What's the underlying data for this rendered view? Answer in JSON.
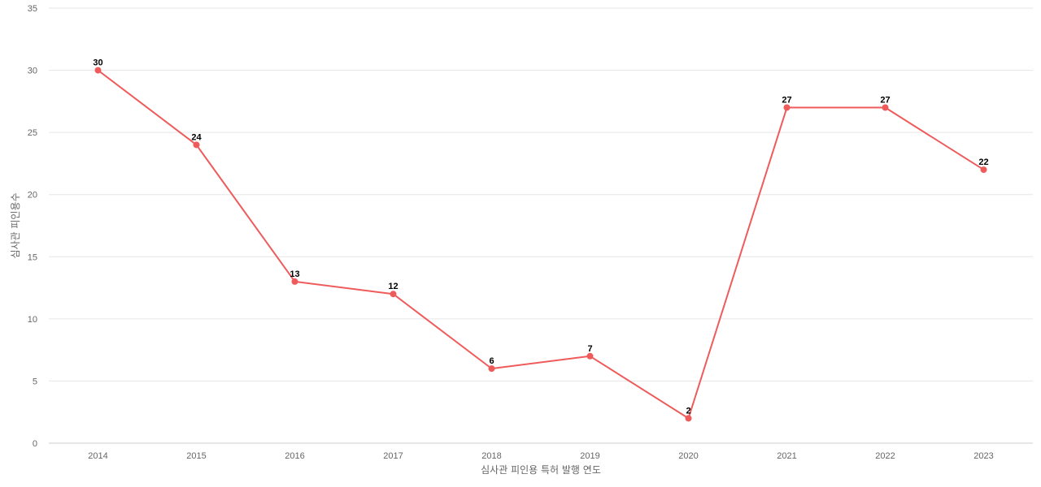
{
  "chart_data": {
    "type": "line",
    "title": "",
    "xlabel": "심사관 피인용 특허 발행 연도",
    "ylabel": "심사관 피인용수",
    "categories": [
      "2014",
      "2015",
      "2016",
      "2017",
      "2018",
      "2019",
      "2020",
      "2021",
      "2022",
      "2023"
    ],
    "series": [
      {
        "values": [
          30,
          24,
          13,
          12,
          6,
          7,
          2,
          27,
          27,
          22
        ],
        "color": "#ef5b5b"
      }
    ],
    "ylim": [
      0,
      35
    ],
    "yticks": [
      0,
      5,
      10,
      15,
      20,
      25,
      30,
      35
    ],
    "grid": true,
    "data_labels": true
  }
}
